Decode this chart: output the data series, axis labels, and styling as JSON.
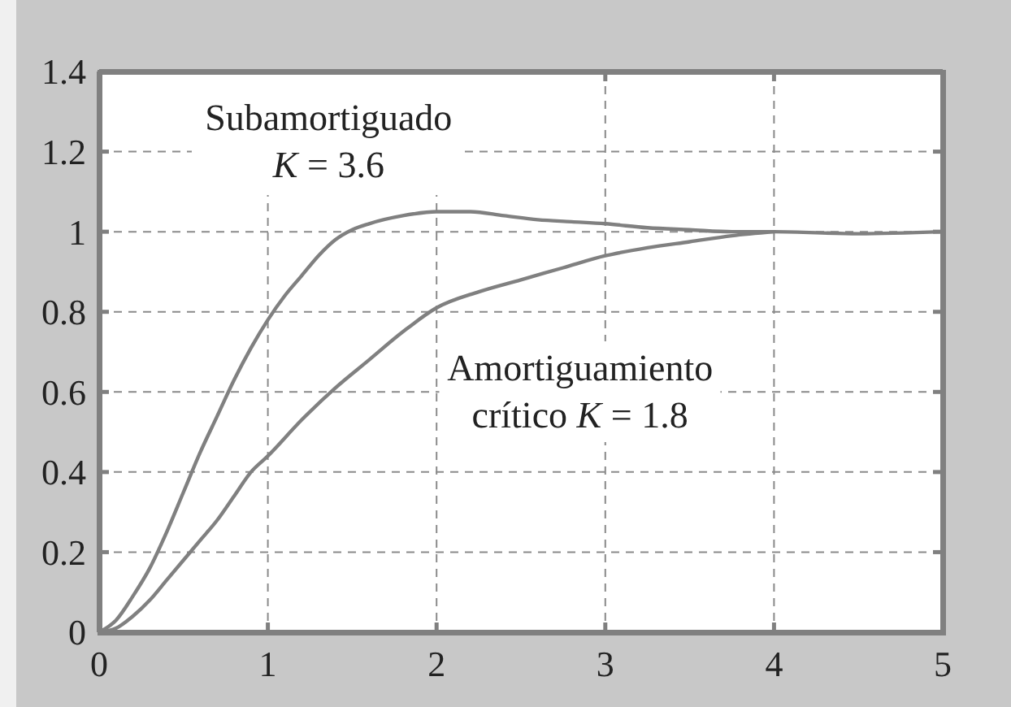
{
  "chart_data": {
    "type": "line",
    "xlim": [
      0,
      5
    ],
    "ylim": [
      0,
      1.4
    ],
    "xticks": [
      0,
      1,
      2,
      3,
      4,
      5
    ],
    "yticks": [
      0,
      0.2,
      0.4,
      0.6,
      0.8,
      1,
      1.2,
      1.4
    ],
    "grid": true,
    "series": [
      {
        "color": "#808080",
        "x": [
          0,
          0.1,
          0.2,
          0.3,
          0.4,
          0.5,
          0.6,
          0.7,
          0.8,
          0.9,
          1,
          1.1,
          1.2,
          1.3,
          1.4,
          1.5,
          1.6,
          1.8,
          2,
          2.2,
          2.4,
          2.6,
          2.8,
          3,
          3.25,
          3.5,
          3.75,
          4,
          4.5,
          5
        ],
        "values": [
          0,
          0.03,
          0.09,
          0.16,
          0.25,
          0.35,
          0.45,
          0.54,
          0.63,
          0.71,
          0.78,
          0.84,
          0.89,
          0.94,
          0.98,
          1.005,
          1.02,
          1.04,
          1.05,
          1.05,
          1.04,
          1.03,
          1.025,
          1.02,
          1.01,
          1.005,
          1,
          1,
          0.995,
          1
        ]
      },
      {
        "color": "#808080",
        "x": [
          0,
          0.1,
          0.2,
          0.3,
          0.4,
          0.5,
          0.6,
          0.7,
          0.8,
          0.9,
          1,
          1.2,
          1.4,
          1.6,
          1.8,
          2,
          2.25,
          2.5,
          2.75,
          3,
          3.25,
          3.5,
          3.75,
          4
        ],
        "values": [
          0,
          0.01,
          0.04,
          0.08,
          0.13,
          0.18,
          0.23,
          0.28,
          0.34,
          0.4,
          0.44,
          0.53,
          0.61,
          0.68,
          0.75,
          0.81,
          0.85,
          0.88,
          0.91,
          0.94,
          0.96,
          0.975,
          0.99,
          1
        ]
      }
    ],
    "annotations": [
      "Subamortiguado\nK = 3.6",
      "Amortiguamiento\ncrítico K = 1.8"
    ]
  }
}
